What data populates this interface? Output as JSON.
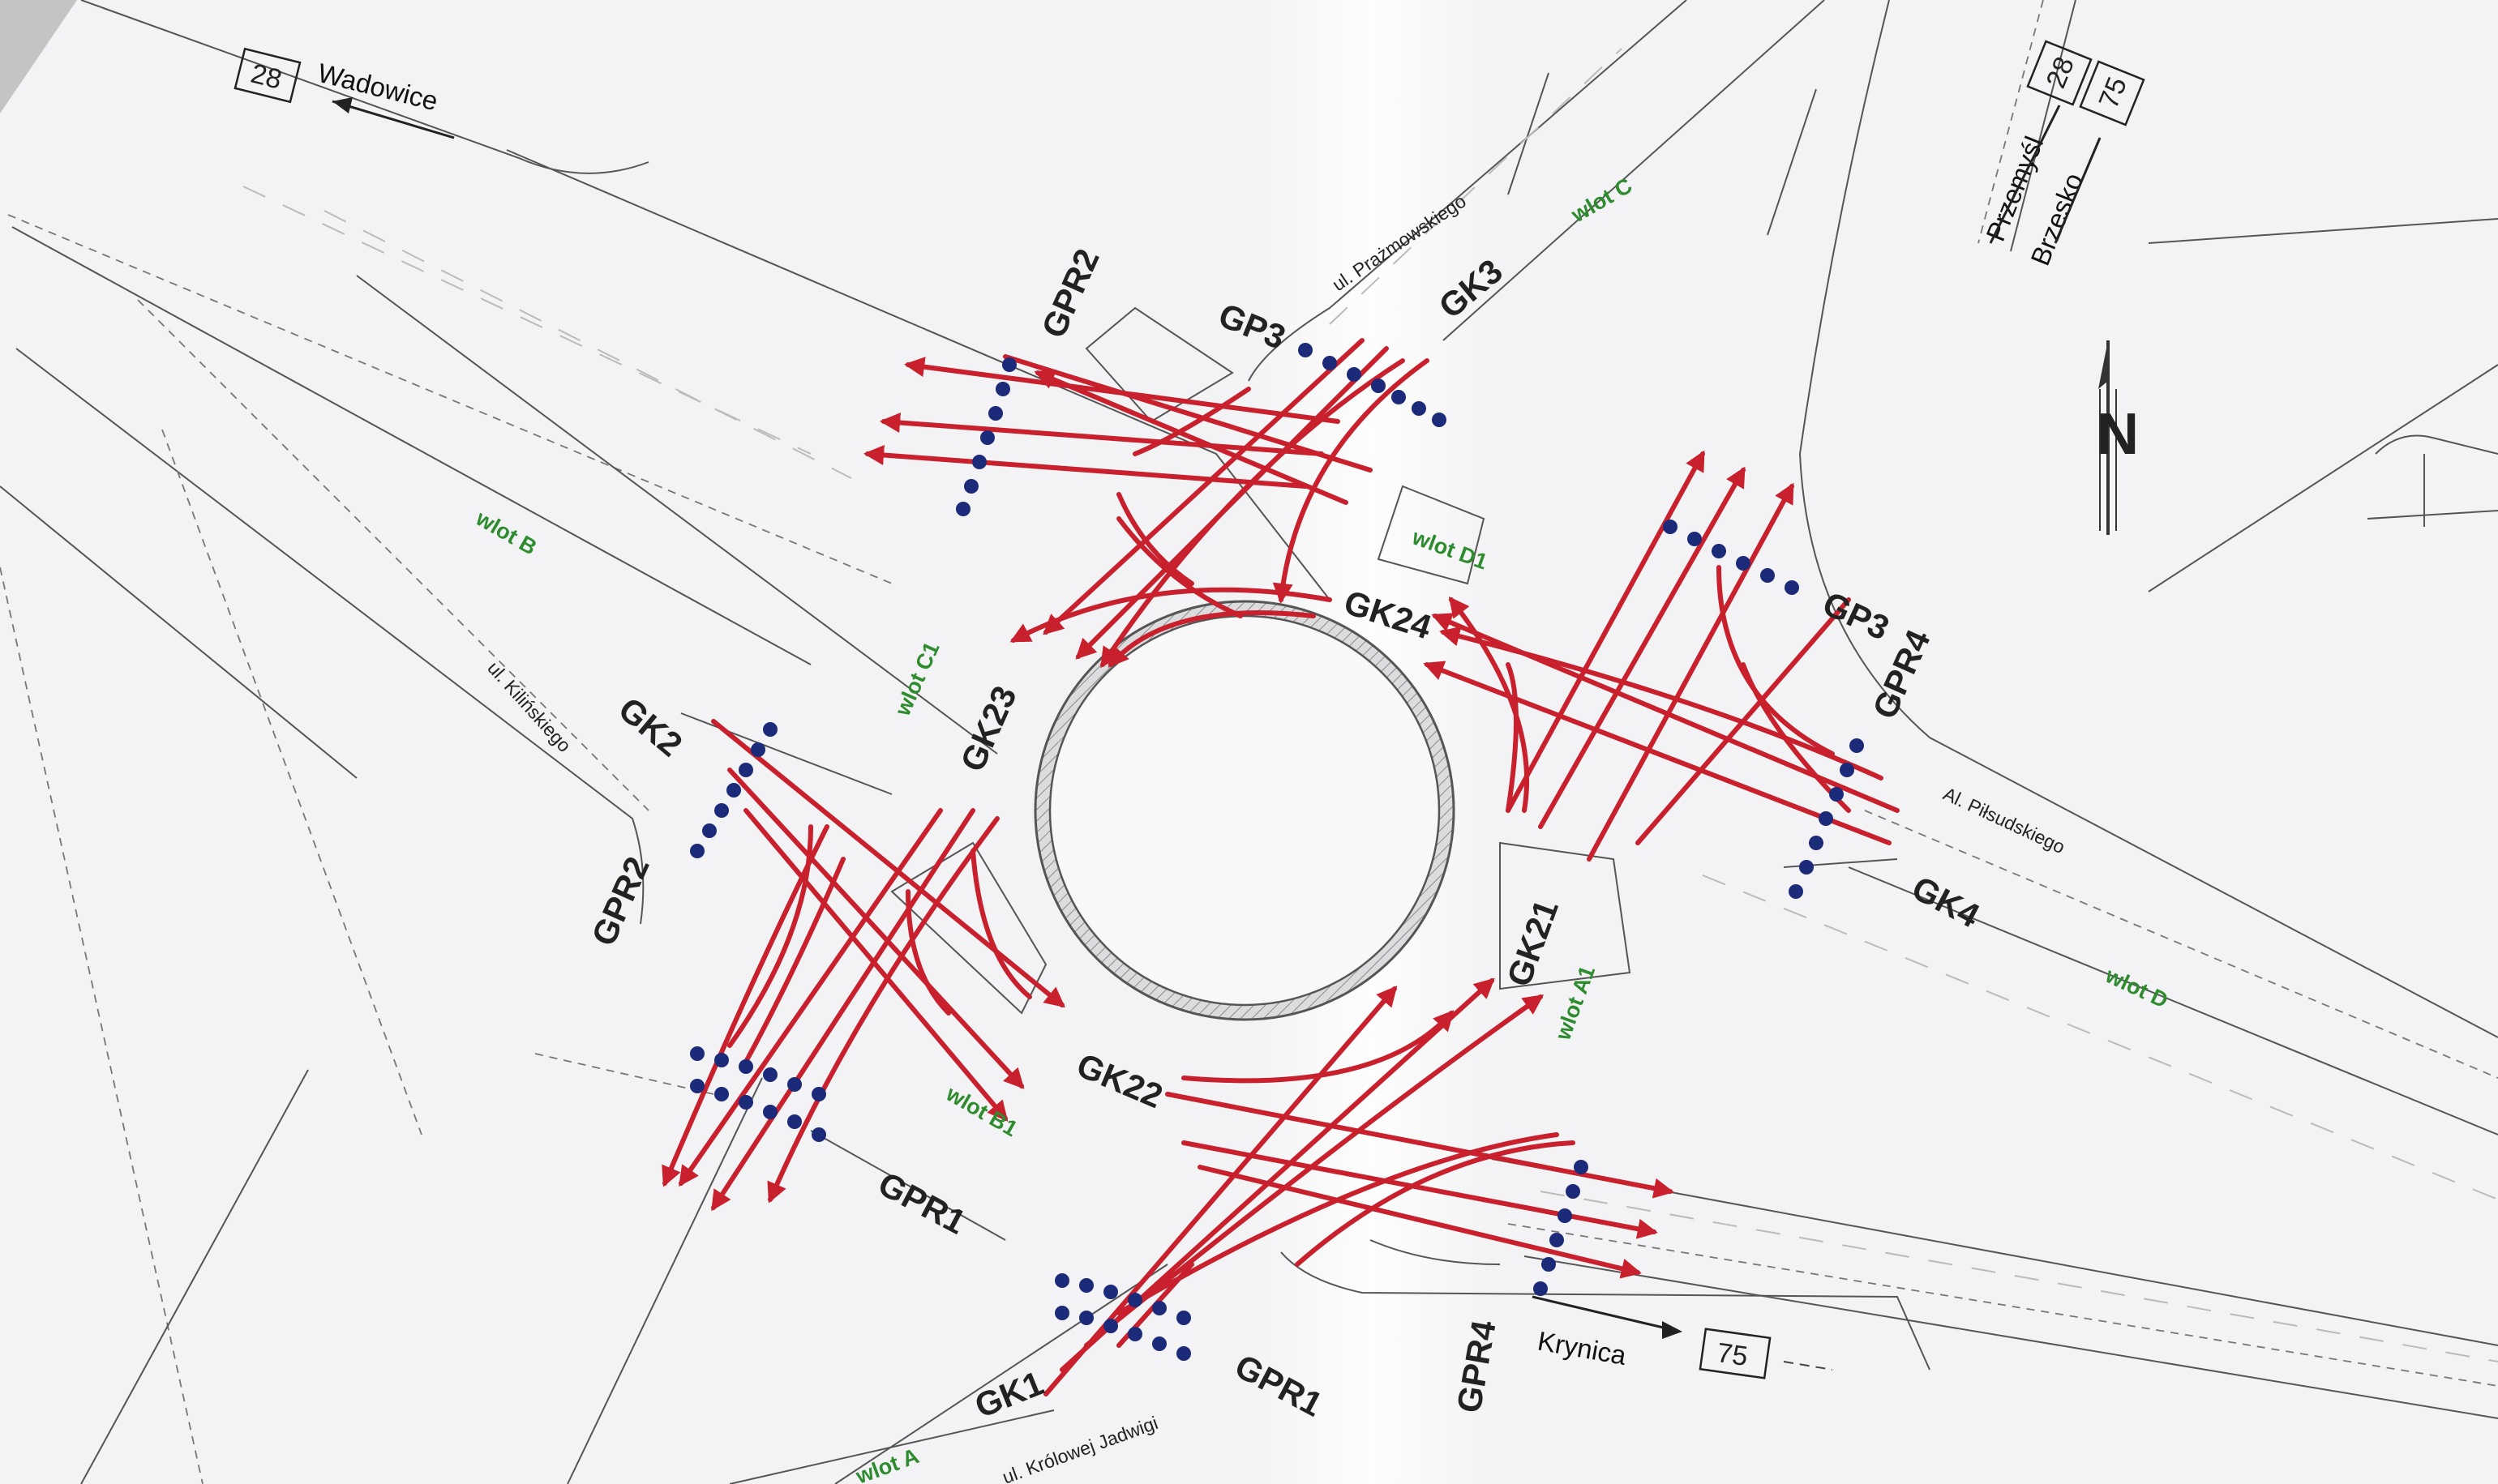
{
  "signals": {
    "gk1": "GK1",
    "gk2": "GK2",
    "gk3": "GK3",
    "gk4": "GK4",
    "gk21": "GK21",
    "gk22": "GK22",
    "gk23": "GK23",
    "gk24": "GK24",
    "gpr1_west": "GPR1",
    "gpr1_south": "GPR1",
    "gpr2_north": "GPR2",
    "gpr2_west": "GPR2",
    "gpr4_east": "GPR4",
    "gpr4_south": "GPR4",
    "gp3_north": "GP3",
    "gp3_east": "GP3"
  },
  "inlets": {
    "a": "wlot A",
    "a1": "wlot A1",
    "b": "wlot B",
    "b1": "wlot B1",
    "c": "wlot C",
    "c1": "wlot C1",
    "d": "wlot D",
    "d1": "wlot D1"
  },
  "streets": {
    "prazmowskiego": "ul. Prażmowskiego",
    "kilinskiego": "ul. Kilińskiego",
    "pilsudskiego": "Al. Piłsudskiego",
    "jadwigi": "ul. Królowej Jadwigi"
  },
  "destinations": {
    "wadowice": "Wadowice",
    "przemysl": "Przemyśl",
    "brzesko": "Brzesko",
    "krynica": "Krynica"
  },
  "route_numbers": {
    "wadowice": "28",
    "north_a": "28",
    "north_b": "75",
    "krynica": "75"
  },
  "north_arrow": "N",
  "colors": {
    "flow": "#c8202c",
    "detector": "#1c2a7a",
    "inlet_label": "#2e8b2e"
  }
}
